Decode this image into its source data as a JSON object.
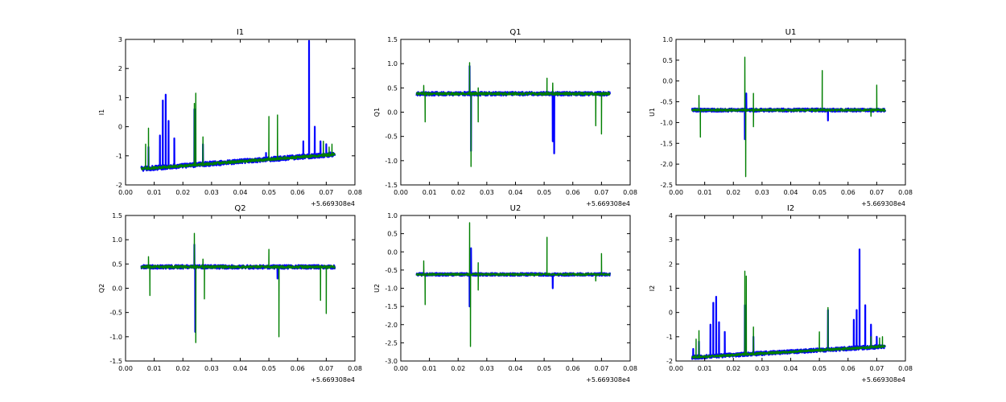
{
  "chart_data": [
    {
      "type": "line",
      "title": "I1",
      "ylabel": "I1",
      "xlabel": "",
      "xlim": [
        0.0,
        0.08
      ],
      "ylim": [
        -2,
        3
      ],
      "xticks": [
        "0.00",
        "0.01",
        "0.02",
        "0.03",
        "0.04",
        "0.05",
        "0.06",
        "0.07",
        "0.08"
      ],
      "yticks": [
        "-2",
        "-1",
        "0",
        "1",
        "2",
        "3"
      ],
      "x_offset_label": "+5.669308e4",
      "grid": false,
      "series": [
        {
          "color": "#0000ff",
          "x_range": [
            0.0055,
            0.073
          ],
          "base": [
            -1.45,
            -0.95
          ],
          "noise": 0.08,
          "spikes": [
            [
              0.008,
              -0.7
            ],
            [
              0.012,
              -0.3
            ],
            [
              0.013,
              0.9
            ],
            [
              0.014,
              1.1
            ],
            [
              0.015,
              0.2
            ],
            [
              0.017,
              -0.4
            ],
            [
              0.024,
              0.6
            ],
            [
              0.027,
              -0.6
            ],
            [
              0.049,
              -0.9
            ],
            [
              0.062,
              -0.5
            ],
            [
              0.064,
              2.95
            ],
            [
              0.066,
              0.0
            ],
            [
              0.068,
              -0.5
            ],
            [
              0.07,
              -0.6
            ]
          ]
        },
        {
          "color": "#007f00",
          "x_range": [
            0.0055,
            0.073
          ],
          "base": [
            -1.45,
            -0.95
          ],
          "noise": 0.05,
          "spikes": [
            [
              0.007,
              -0.6
            ],
            [
              0.008,
              -0.05
            ],
            [
              0.024,
              0.8
            ],
            [
              0.0245,
              1.15
            ],
            [
              0.027,
              -0.35
            ],
            [
              0.05,
              0.35
            ],
            [
              0.053,
              0.4
            ],
            [
              0.069,
              -0.5
            ],
            [
              0.071,
              -0.7
            ],
            [
              0.072,
              -0.6
            ]
          ]
        }
      ]
    },
    {
      "type": "line",
      "title": "Q1",
      "ylabel": "Q1",
      "xlabel": "",
      "xlim": [
        0.0,
        0.08
      ],
      "ylim": [
        -1.5,
        1.5
      ],
      "xticks": [
        "0.00",
        "0.01",
        "0.02",
        "0.03",
        "0.04",
        "0.05",
        "0.06",
        "0.07",
        "0.08"
      ],
      "yticks": [
        "-1.5",
        "-1.0",
        "-0.5",
        "0.0",
        "0.5",
        "1.0",
        "1.5"
      ],
      "x_offset_label": "+5.669308e4",
      "grid": false,
      "series": [
        {
          "color": "#0000ff",
          "x_range": [
            0.0055,
            0.073
          ],
          "base": [
            0.38,
            0.38
          ],
          "noise": 0.04,
          "spikes": [
            [
              0.024,
              0.95
            ],
            [
              0.0245,
              -0.8
            ],
            [
              0.053,
              -0.6
            ],
            [
              0.0535,
              -0.85
            ]
          ]
        },
        {
          "color": "#007f00",
          "x_range": [
            0.0055,
            0.073
          ],
          "base": [
            0.38,
            0.38
          ],
          "noise": 0.03,
          "spikes": [
            [
              0.008,
              0.55
            ],
            [
              0.0085,
              -0.2
            ],
            [
              0.024,
              1.02
            ],
            [
              0.0245,
              -1.12
            ],
            [
              0.027,
              -0.2
            ],
            [
              0.027,
              0.5
            ],
            [
              0.051,
              0.7
            ],
            [
              0.053,
              0.6
            ],
            [
              0.068,
              -0.28
            ],
            [
              0.07,
              -0.45
            ]
          ]
        }
      ]
    },
    {
      "type": "line",
      "title": "U1",
      "ylabel": "U1",
      "xlabel": "",
      "xlim": [
        0.0,
        0.08
      ],
      "ylim": [
        -2.5,
        1.0
      ],
      "xticks": [
        "0.00",
        "0.01",
        "0.02",
        "0.03",
        "0.04",
        "0.05",
        "0.06",
        "0.07",
        "0.08"
      ],
      "yticks": [
        "-2.5",
        "-2.0",
        "-1.5",
        "-1.0",
        "-0.5",
        "0.0",
        "0.5",
        "1.0"
      ],
      "x_offset_label": "+5.669308e4",
      "grid": false,
      "series": [
        {
          "color": "#0000ff",
          "x_range": [
            0.0055,
            0.073
          ],
          "base": [
            -0.7,
            -0.7
          ],
          "noise": 0.04,
          "spikes": [
            [
              0.024,
              -1.4
            ],
            [
              0.0245,
              -0.3
            ],
            [
              0.053,
              -0.95
            ]
          ]
        },
        {
          "color": "#007f00",
          "x_range": [
            0.0055,
            0.073
          ],
          "base": [
            -0.7,
            -0.7
          ],
          "noise": 0.03,
          "spikes": [
            [
              0.008,
              -0.35
            ],
            [
              0.0085,
              -1.35
            ],
            [
              0.024,
              0.57
            ],
            [
              0.0243,
              -2.3
            ],
            [
              0.027,
              -0.3
            ],
            [
              0.027,
              -1.1
            ],
            [
              0.051,
              0.25
            ],
            [
              0.068,
              -0.85
            ],
            [
              0.07,
              -0.1
            ]
          ]
        }
      ]
    },
    {
      "type": "line",
      "title": "Q2",
      "ylabel": "Q2",
      "xlabel": "",
      "xlim": [
        0.0,
        0.08
      ],
      "ylim": [
        -1.5,
        1.5
      ],
      "xticks": [
        "0.00",
        "0.01",
        "0.02",
        "0.03",
        "0.04",
        "0.05",
        "0.06",
        "0.07",
        "0.08"
      ],
      "yticks": [
        "-1.5",
        "-1.0",
        "-0.5",
        "0.0",
        "0.5",
        "1.0",
        "1.5"
      ],
      "x_offset_label": "+5.669308e4",
      "grid": false,
      "series": [
        {
          "color": "#0000ff",
          "x_range": [
            0.0055,
            0.073
          ],
          "base": [
            0.44,
            0.44
          ],
          "noise": 0.04,
          "spikes": [
            [
              0.024,
              0.9
            ],
            [
              0.0243,
              -0.9
            ],
            [
              0.053,
              0.2
            ]
          ]
        },
        {
          "color": "#007f00",
          "x_range": [
            0.0055,
            0.073
          ],
          "base": [
            0.44,
            0.44
          ],
          "noise": 0.03,
          "spikes": [
            [
              0.008,
              0.65
            ],
            [
              0.0085,
              -0.15
            ],
            [
              0.024,
              1.13
            ],
            [
              0.0245,
              -1.12
            ],
            [
              0.027,
              0.6
            ],
            [
              0.0275,
              -0.22
            ],
            [
              0.05,
              0.8
            ],
            [
              0.0535,
              -1.0
            ],
            [
              0.068,
              -0.25
            ],
            [
              0.07,
              -0.52
            ]
          ]
        }
      ]
    },
    {
      "type": "line",
      "title": "U2",
      "ylabel": "U2",
      "xlabel": "",
      "xlim": [
        0.0,
        0.08
      ],
      "ylim": [
        -3.0,
        1.0
      ],
      "xticks": [
        "0.00",
        "0.01",
        "0.02",
        "0.03",
        "0.04",
        "0.05",
        "0.06",
        "0.07",
        "0.08"
      ],
      "yticks": [
        "-3.0",
        "-2.5",
        "-2.0",
        "-1.5",
        "-1.0",
        "-0.5",
        "0.0",
        "0.5",
        "1.0"
      ],
      "x_offset_label": "+5.669308e4",
      "grid": false,
      "series": [
        {
          "color": "#0000ff",
          "x_range": [
            0.0055,
            0.073
          ],
          "base": [
            -0.62,
            -0.62
          ],
          "noise": 0.04,
          "spikes": [
            [
              0.024,
              -1.5
            ],
            [
              0.0245,
              0.1
            ],
            [
              0.053,
              -1.0
            ]
          ]
        },
        {
          "color": "#007f00",
          "x_range": [
            0.0055,
            0.073
          ],
          "base": [
            -0.62,
            -0.62
          ],
          "noise": 0.03,
          "spikes": [
            [
              0.008,
              -0.25
            ],
            [
              0.0085,
              -1.45
            ],
            [
              0.024,
              0.8
            ],
            [
              0.0243,
              -2.6
            ],
            [
              0.027,
              -0.3
            ],
            [
              0.027,
              -1.05
            ],
            [
              0.051,
              0.4
            ],
            [
              0.068,
              -0.8
            ],
            [
              0.07,
              -0.05
            ]
          ]
        }
      ]
    },
    {
      "type": "line",
      "title": "I2",
      "ylabel": "I2",
      "xlabel": "",
      "xlim": [
        0.0,
        0.08
      ],
      "ylim": [
        -2,
        4
      ],
      "xticks": [
        "0.00",
        "0.01",
        "0.02",
        "0.03",
        "0.04",
        "0.05",
        "0.06",
        "0.07",
        "0.08"
      ],
      "yticks": [
        "-2",
        "-1",
        "0",
        "1",
        "2",
        "3",
        "4"
      ],
      "x_offset_label": "+5.669308e4",
      "grid": false,
      "series": [
        {
          "color": "#0000ff",
          "x_range": [
            0.0055,
            0.073
          ],
          "base": [
            -1.85,
            -1.4
          ],
          "noise": 0.08,
          "spikes": [
            [
              0.006,
              -1.5
            ],
            [
              0.008,
              -1.2
            ],
            [
              0.012,
              -0.5
            ],
            [
              0.013,
              0.4
            ],
            [
              0.014,
              0.65
            ],
            [
              0.015,
              -0.4
            ],
            [
              0.017,
              -0.8
            ],
            [
              0.024,
              0.3
            ],
            [
              0.027,
              -1.0
            ],
            [
              0.053,
              0.1
            ],
            [
              0.062,
              -0.3
            ],
            [
              0.063,
              0.1
            ],
            [
              0.064,
              2.6
            ],
            [
              0.066,
              0.3
            ],
            [
              0.068,
              -0.5
            ],
            [
              0.07,
              -1.0
            ]
          ]
        },
        {
          "color": "#007f00",
          "x_range": [
            0.0055,
            0.073
          ],
          "base": [
            -1.85,
            -1.4
          ],
          "noise": 0.05,
          "spikes": [
            [
              0.007,
              -1.1
            ],
            [
              0.008,
              -0.75
            ],
            [
              0.024,
              1.7
            ],
            [
              0.0245,
              1.5
            ],
            [
              0.027,
              -0.6
            ],
            [
              0.05,
              -0.8
            ],
            [
              0.053,
              0.2
            ],
            [
              0.068,
              -1.0
            ],
            [
              0.071,
              -1.05
            ],
            [
              0.072,
              -1.0
            ]
          ]
        }
      ]
    }
  ]
}
